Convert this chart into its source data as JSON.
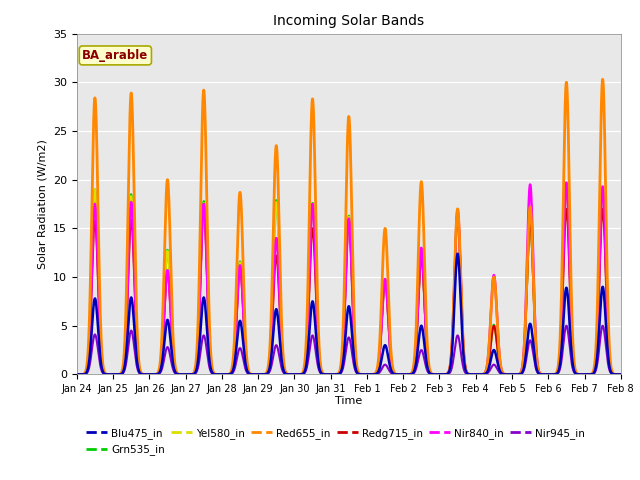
{
  "title": "Incoming Solar Bands",
  "xlabel": "Time",
  "ylabel": "Solar Radiation (W/m2)",
  "annotation": "BA_arable",
  "ylim": [
    0,
    35
  ],
  "background_color": "#e8e8e8",
  "line_colors": {
    "Blu475_in": "#0000bb",
    "Grn535_in": "#00cc00",
    "Yel580_in": "#dddd00",
    "Red655_in": "#ff8800",
    "Redg715_in": "#cc0000",
    "Nir840_in": "#ff00ff",
    "Nir945_in": "#8800cc"
  },
  "xtick_labels": [
    "Jan 24",
    "Jan 25",
    "Jan 26",
    "Jan 27",
    "Jan 28",
    "Jan 29",
    "Jan 30",
    "Jan 31",
    "Feb 1",
    "Feb 2",
    "Feb 3",
    "Feb 4",
    "Feb 5",
    "Feb 6",
    "Feb 7",
    "Feb 8"
  ],
  "peak_times": [
    0.5,
    1.5,
    2.5,
    3.5,
    4.5,
    5.5,
    6.5,
    7.5,
    8.5,
    9.5,
    10.5,
    11.5,
    12.5,
    13.5,
    14.5
  ],
  "peaks_Red655": [
    28.4,
    28.9,
    20.0,
    29.2,
    18.7,
    23.5,
    28.3,
    26.5,
    15.0,
    19.8,
    17.0,
    10.0,
    17.2,
    30.0,
    30.3
  ],
  "peaks_Yel580": [
    19.0,
    18.3,
    12.7,
    17.6,
    11.5,
    17.7,
    17.5,
    16.2,
    9.6,
    12.2,
    16.5,
    5.0,
    15.7,
    19.5,
    19.0
  ],
  "peaks_Blu475": [
    7.8,
    7.9,
    5.6,
    7.9,
    5.5,
    6.7,
    7.5,
    7.0,
    3.0,
    5.0,
    12.4,
    2.5,
    5.2,
    8.9,
    9.0
  ],
  "peaks_Nir840": [
    17.5,
    17.7,
    10.7,
    17.5,
    11.2,
    14.0,
    17.5,
    16.0,
    9.8,
    13.0,
    16.8,
    10.2,
    19.5,
    19.7,
    19.3
  ],
  "peaks_Redg715": [
    15.8,
    15.9,
    10.5,
    17.5,
    11.0,
    12.2,
    15.0,
    15.9,
    9.7,
    12.0,
    16.5,
    5.0,
    15.6,
    17.0,
    17.0
  ],
  "peaks_Grn535": [
    19.0,
    18.5,
    12.8,
    17.8,
    11.6,
    17.9,
    17.6,
    16.3,
    9.7,
    12.3,
    16.6,
    5.1,
    15.8,
    19.6,
    19.1
  ],
  "peaks_Nir945": [
    4.1,
    4.5,
    2.8,
    4.0,
    2.7,
    3.0,
    4.0,
    3.8,
    1.0,
    2.5,
    4.0,
    1.0,
    3.5,
    5.0,
    5.0
  ]
}
